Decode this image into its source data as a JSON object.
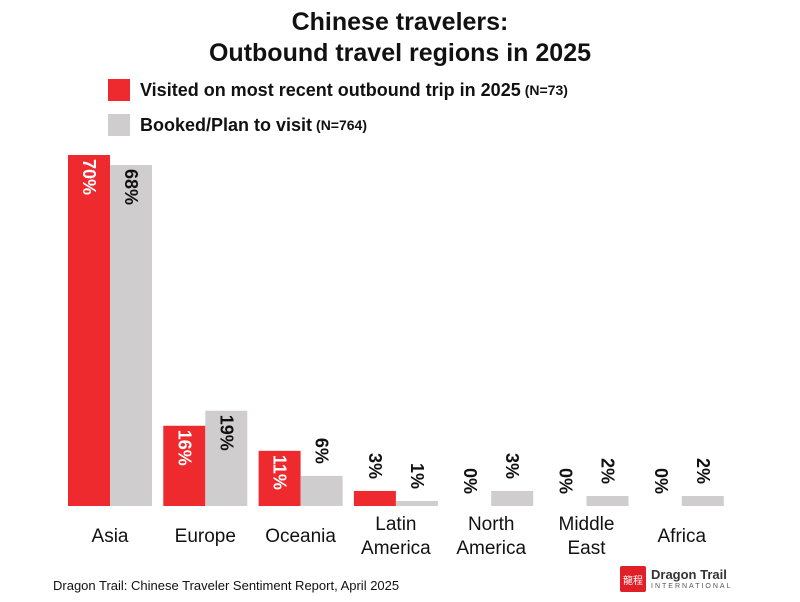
{
  "title_line1": "Chinese travelers:",
  "title_line2": "Outbound travel regions in 2025",
  "legend": [
    {
      "label": "Visited on most recent outbound trip in 2025",
      "n": "(N=73)",
      "color": "#ee2a2f"
    },
    {
      "label": "Booked/Plan to visit",
      "n": "(N=764)",
      "color": "#cfcdcd"
    }
  ],
  "source": "Dragon Trail: Chinese Traveler Sentiment Report, April 2025",
  "logo": {
    "seal": "龍程",
    "name": "Dragon Trail",
    "sub": "INTERNATIONAL"
  },
  "chart_data": {
    "type": "bar",
    "categories": [
      [
        "Asia"
      ],
      [
        "Europe"
      ],
      [
        "Oceania"
      ],
      [
        "Latin",
        "America"
      ],
      [
        "North",
        "America"
      ],
      [
        "Middle",
        "East"
      ],
      [
        "Africa"
      ]
    ],
    "series": [
      {
        "name": "Visited on most recent outbound trip in 2025",
        "values": [
          70,
          16,
          11,
          3,
          0,
          0,
          0
        ],
        "labels": [
          "70%",
          "16%",
          "11%",
          "3%",
          "0%",
          "0%",
          "0%"
        ],
        "color": "#ee2a2f"
      },
      {
        "name": "Booked/Plan to visit",
        "values": [
          68,
          19,
          6,
          1,
          3,
          2,
          2
        ],
        "labels": [
          "68%",
          "19%",
          "6%",
          "1%",
          "3%",
          "2%",
          "2%"
        ],
        "color": "#cfcdcd"
      }
    ],
    "ylim": [
      0,
      70
    ],
    "grid": false,
    "legend_position": "top-left"
  }
}
